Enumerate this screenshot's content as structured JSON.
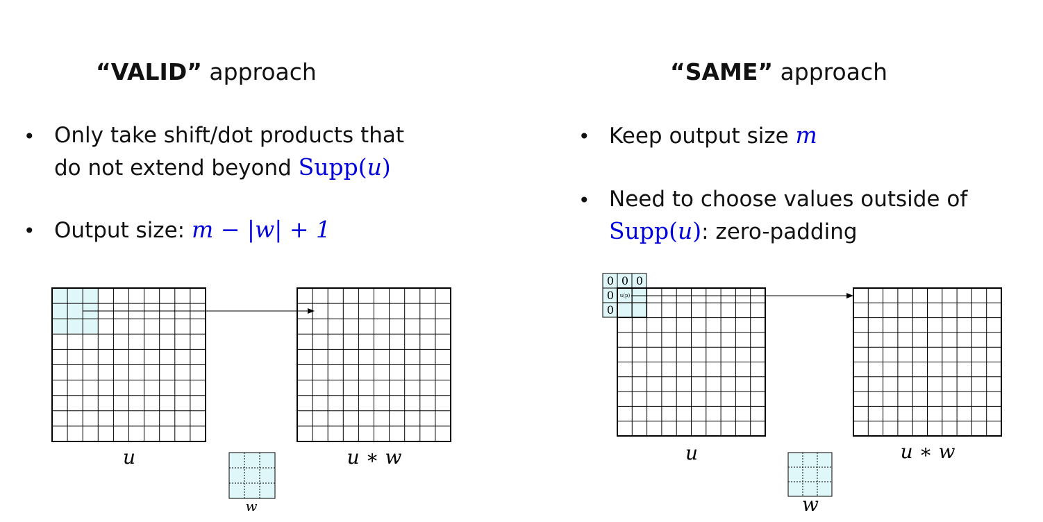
{
  "valid": {
    "title_quote": "“VALID”",
    "title_rest": " approach",
    "bullet1_line1": "Only take shift/dot products that",
    "bullet1_line2": "do not extend beyond ",
    "bullet1_math_fn": "Supp(",
    "bullet1_math_var": "u",
    "bullet1_math_close": ")",
    "bullet2_text": "Output size: ",
    "bullet2_math": "m − |w| + 1",
    "label_u": "u",
    "label_uw": "u ∗ w",
    "label_w": "w"
  },
  "same": {
    "title_quote": "“SAME”",
    "title_rest": " approach",
    "bullet1_text": "Keep output size ",
    "bullet1_math": "m",
    "bullet2_line1": "Need to choose values outside of",
    "bullet2_math_fn": "Supp(",
    "bullet2_math_var": "u",
    "bullet2_math_close": ")",
    "bullet2_rest": ": zero-padding",
    "pad_zero": "0",
    "up_label": "u(p)",
    "label_u": "u",
    "label_uw": "u ∗ w",
    "label_w": "w"
  },
  "colors": {
    "highlight": "#e0f7f9",
    "math": "#0000dd"
  }
}
